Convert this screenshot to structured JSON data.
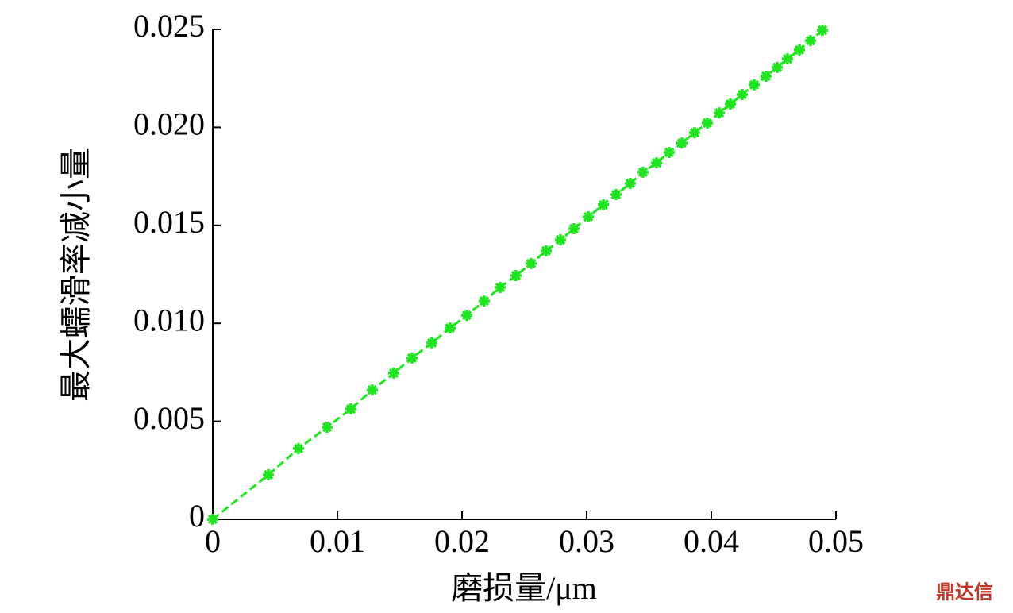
{
  "chart_data": {
    "type": "line",
    "xlabel": "磨损量/μm",
    "ylabel": "最大蠕滑率减小量",
    "watermark": "鼎达信",
    "xlim": [
      0,
      0.05
    ],
    "xticks": [
      0,
      0.01,
      0.02,
      0.03,
      0.04,
      0.05
    ],
    "ylim": [
      0,
      0.025
    ],
    "yticks": [
      0,
      0.005,
      {
        "value": 0.01,
        "label": "0.010"
      },
      0.015,
      {
        "value": 0.02,
        "label": "0.020"
      },
      0.025
    ],
    "series": [
      {
        "color": "#1ee61e",
        "x": [
          0,
          0.00446,
          0.00688,
          0.00917,
          0.01108,
          0.0128,
          0.01452,
          0.01599,
          0.01758,
          0.01904,
          0.02038,
          0.02178,
          0.02306,
          0.02433,
          0.02554,
          0.02675,
          0.0279,
          0.02898,
          0.03013,
          0.03134,
          0.03236,
          0.0335,
          0.03452,
          0.03561,
          0.03662,
          0.03764,
          0.03866,
          0.03968,
          0.04064,
          0.04153,
          0.04248,
          0.04344,
          0.04439,
          0.04529,
          0.04611,
          0.04707,
          0.04796,
          0.04892
        ],
        "values": [
          0,
          0.00227,
          0.00361,
          0.0047,
          0.00563,
          0.0066,
          0.00746,
          0.00823,
          0.009,
          0.00976,
          0.01041,
          0.01114,
          0.01183,
          0.01244,
          0.01305,
          0.0137,
          0.01426,
          0.01483,
          0.01544,
          0.01605,
          0.01657,
          0.01714,
          0.01771,
          0.01819,
          0.01872,
          0.0192,
          0.01973,
          0.02022,
          0.02074,
          0.02119,
          0.02168,
          0.02217,
          0.02261,
          0.02306,
          0.0235,
          0.02395,
          0.02443,
          0.02496
        ]
      }
    ]
  }
}
